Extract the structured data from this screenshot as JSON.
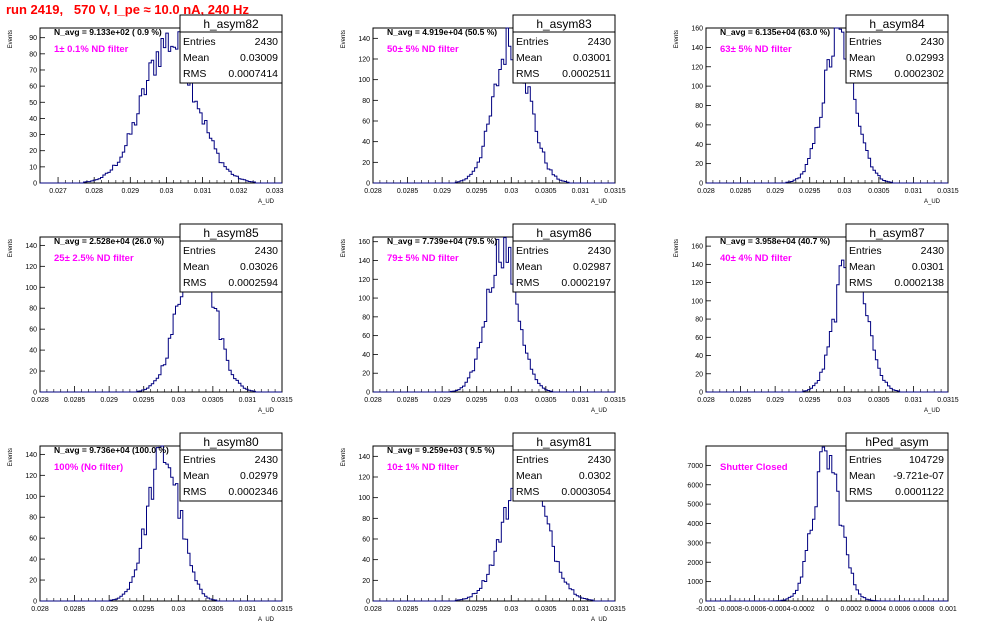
{
  "title": "run 2419,   570 V, I_pe ≈ 10.0 nA, 240 Hz",
  "colors": {
    "title": "#ff0000",
    "annotation": "#ff00ff",
    "hist": "#000080",
    "frame": "#000000"
  },
  "chart_data": [
    {
      "type": "histogram",
      "name": "h_asym82",
      "ylabel": "Events",
      "xlabel": "A_UD",
      "xlim": [
        0.0265,
        0.0332
      ],
      "ylim": [
        0,
        96
      ],
      "xticks": [
        0.027,
        0.028,
        0.029,
        0.03,
        0.031,
        0.032,
        0.033
      ],
      "xtick_labels": [
        "0.027",
        "0.028",
        "0.029",
        "0.03",
        "0.031",
        "0.032",
        "0.033"
      ],
      "yticks": [
        0,
        10,
        20,
        30,
        40,
        50,
        60,
        70,
        80,
        90
      ],
      "navg": "N_avg = 9.133e+02 ( 0.9 %)",
      "annotation": "1± 0.1% ND filter",
      "entries": "2430",
      "mean": "0.03009",
      "rms": "0.0007414",
      "center": 0.03009,
      "sigma": 0.0007414,
      "peak": 88
    },
    {
      "type": "histogram",
      "name": "h_asym83",
      "ylabel": "Events",
      "xlabel": "A_UD",
      "xlim": [
        0.028,
        0.0315
      ],
      "ylim": [
        0,
        150
      ],
      "xticks": [
        0.028,
        0.0285,
        0.029,
        0.0295,
        0.03,
        0.0305,
        0.031,
        0.0315
      ],
      "xtick_labels": [
        "0.028",
        "0.0285",
        "0.029",
        "0.0295",
        "0.03",
        "0.0305",
        "0.031",
        "0.0315"
      ],
      "yticks": [
        0,
        20,
        40,
        60,
        80,
        100,
        120,
        140
      ],
      "navg": "N_avg = 4.919e+04 (50.5 %)",
      "annotation": "50± 5% ND filter",
      "entries": "2430",
      "mean": "0.03001",
      "rms": "0.0002511",
      "center": 0.03001,
      "sigma": 0.0002511,
      "peak": 140
    },
    {
      "type": "histogram",
      "name": "h_asym84",
      "ylabel": "Events",
      "xlabel": "A_UD",
      "xlim": [
        0.028,
        0.0315
      ],
      "ylim": [
        0,
        160
      ],
      "xticks": [
        0.028,
        0.0285,
        0.029,
        0.0295,
        0.03,
        0.0305,
        0.031,
        0.0315
      ],
      "xtick_labels": [
        "0.028",
        "0.0285",
        "0.029",
        "0.0295",
        "0.03",
        "0.0305",
        "0.031",
        "0.0315"
      ],
      "yticks": [
        0,
        20,
        40,
        60,
        80,
        100,
        120,
        140,
        160
      ],
      "navg": "N_avg = 6.135e+04 (63.0 %)",
      "annotation": "63± 5% ND filter",
      "entries": "2430",
      "mean": "0.02993",
      "rms": "0.0002302",
      "center": 0.02993,
      "sigma": 0.0002302,
      "peak": 150
    },
    {
      "type": "histogram",
      "name": "h_asym85",
      "ylabel": "Events",
      "xlabel": "A_UD",
      "xlim": [
        0.028,
        0.0315
      ],
      "ylim": [
        0,
        148
      ],
      "xticks": [
        0.028,
        0.0285,
        0.029,
        0.0295,
        0.03,
        0.0305,
        0.031,
        0.0315
      ],
      "xtick_labels": [
        "0.028",
        "0.0285",
        "0.029",
        "0.0295",
        "0.03",
        "0.0305",
        "0.031",
        "0.0315"
      ],
      "yticks": [
        0,
        20,
        40,
        60,
        80,
        100,
        120,
        140
      ],
      "navg": "N_avg = 2.528e+04 (26.0 %)",
      "annotation": "25± 2.5% ND filter",
      "entries": "2430",
      "mean": "0.03026",
      "rms": "0.0002594",
      "center": 0.03026,
      "sigma": 0.0002594,
      "peak": 142
    },
    {
      "type": "histogram",
      "name": "h_asym86",
      "ylabel": "Events",
      "xlabel": "A_UD",
      "xlim": [
        0.028,
        0.0315
      ],
      "ylim": [
        0,
        165
      ],
      "xticks": [
        0.028,
        0.0285,
        0.029,
        0.0295,
        0.03,
        0.0305,
        0.031,
        0.0315
      ],
      "xtick_labels": [
        "0.028",
        "0.0285",
        "0.029",
        "0.0295",
        "0.03",
        "0.0305",
        "0.031",
        "0.0315"
      ],
      "yticks": [
        0,
        20,
        40,
        60,
        80,
        100,
        120,
        140,
        160
      ],
      "navg": "N_avg = 7.739e+04 (79.5 %)",
      "annotation": "79± 5% ND filter",
      "entries": "2430",
      "mean": "0.02987",
      "rms": "0.0002197",
      "center": 0.02987,
      "sigma": 0.0002197,
      "peak": 155
    },
    {
      "type": "histogram",
      "name": "h_asym87",
      "ylabel": "Events",
      "xlabel": "A_UD",
      "xlim": [
        0.028,
        0.0315
      ],
      "ylim": [
        0,
        170
      ],
      "xticks": [
        0.028,
        0.0285,
        0.029,
        0.0295,
        0.03,
        0.0305,
        0.031,
        0.0315
      ],
      "xtick_labels": [
        "0.028",
        "0.0285",
        "0.029",
        "0.0295",
        "0.03",
        "0.0305",
        "0.031",
        "0.0315"
      ],
      "yticks": [
        0,
        20,
        40,
        60,
        80,
        100,
        120,
        140,
        160
      ],
      "navg": "N_avg = 3.958e+04 (40.7 %)",
      "annotation": "40± 4% ND filter",
      "entries": "2430",
      "mean": "0.0301",
      "rms": "0.0002138",
      "center": 0.0301,
      "sigma": 0.0002138,
      "peak": 158
    },
    {
      "type": "histogram",
      "name": "h_asym80",
      "ylabel": "Events",
      "xlabel": "A_UD",
      "xlim": [
        0.028,
        0.0315
      ],
      "ylim": [
        0,
        148
      ],
      "xticks": [
        0.028,
        0.0285,
        0.029,
        0.0295,
        0.03,
        0.0305,
        0.031,
        0.0315
      ],
      "xtick_labels": [
        "0.028",
        "0.0285",
        "0.029",
        "0.0295",
        "0.03",
        "0.0305",
        "0.031",
        "0.0315"
      ],
      "yticks": [
        0,
        20,
        40,
        60,
        80,
        100,
        120,
        140
      ],
      "navg": "N_avg = 9.736e+04 (100.0 %)",
      "annotation": "100% (No filter)",
      "entries": "2430",
      "mean": "0.02979",
      "rms": "0.0002346",
      "center": 0.02979,
      "sigma": 0.0002346,
      "peak": 140
    },
    {
      "type": "histogram",
      "name": "h_asym81",
      "ylabel": "Events",
      "xlabel": "A_UD",
      "xlim": [
        0.028,
        0.0315
      ],
      "ylim": [
        0,
        150
      ],
      "xticks": [
        0.028,
        0.0285,
        0.029,
        0.0295,
        0.03,
        0.0305,
        0.031,
        0.0315
      ],
      "xtick_labels": [
        "0.028",
        "0.0285",
        "0.029",
        "0.0295",
        "0.03",
        "0.0305",
        "0.031",
        "0.0315"
      ],
      "yticks": [
        0,
        20,
        40,
        60,
        80,
        100,
        120,
        140
      ],
      "navg": "N_avg = 9.259e+03 ( 9.5 %)",
      "annotation": "10± 1% ND filter",
      "entries": "2430",
      "mean": "0.0302",
      "rms": "0.0003054",
      "center": 0.0302,
      "sigma": 0.0003054,
      "peak": 128
    },
    {
      "type": "histogram",
      "name": "hPed_asym",
      "ylabel": "",
      "xlabel": "",
      "xlim": [
        -0.001,
        0.001
      ],
      "ylim": [
        0,
        8000
      ],
      "xticks": [
        -0.001,
        -0.0008,
        -0.0006,
        -0.0004,
        -0.0002,
        0,
        0.0002,
        0.0004,
        0.0006,
        0.0008,
        0.001
      ],
      "xtick_labels": [
        "-0.001",
        "-0.0008",
        "-0.0006",
        "-0.0004",
        "-0.0002",
        "0",
        "0.0002",
        "0.0004",
        "0.0006",
        "0.0008",
        "0.001"
      ],
      "yticks": [
        0,
        1000,
        2000,
        3000,
        4000,
        5000,
        6000,
        7000
      ],
      "navg": "",
      "annotation": "Shutter Closed",
      "entries": "104729",
      "mean": "-9.721e-07",
      "rms": "0.0001122",
      "center": -1e-06,
      "sigma": 0.0001122,
      "peak": 7450
    }
  ]
}
